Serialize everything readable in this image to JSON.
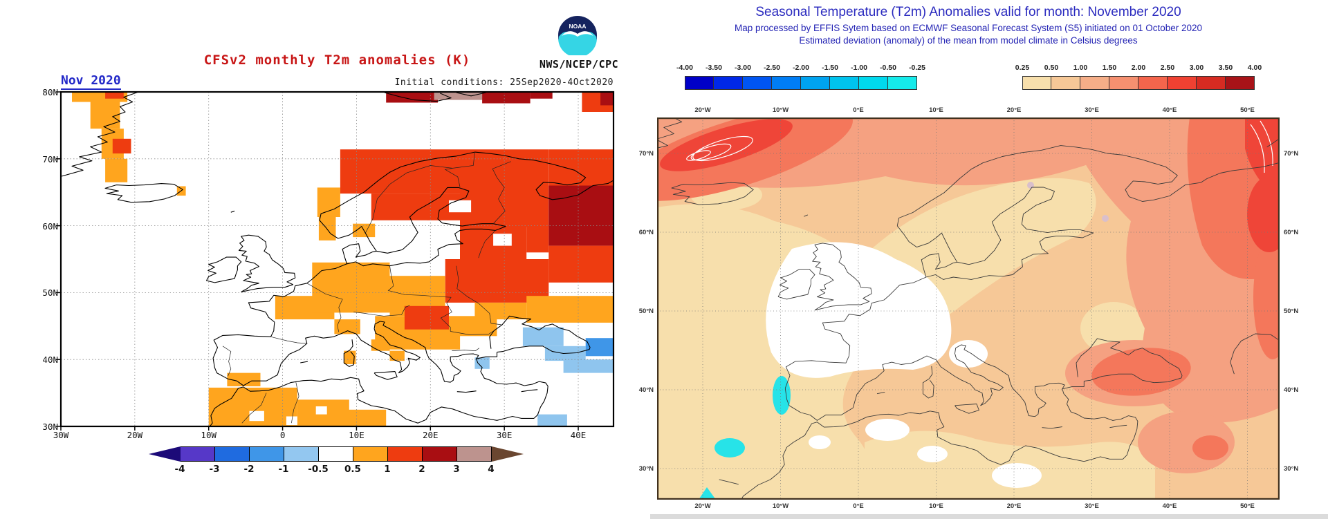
{
  "left_panel": {
    "title": "CFSv2 monthly T2m anomalies (K)",
    "date_label": "Nov 2020",
    "init_conditions": "Initial conditions: 25Sep2020-4Oct2020",
    "agency": "NWS/NCEP/CPC",
    "noaa_logo_text": "NOAA",
    "x_labels": [
      "30W",
      "20W",
      "10W",
      "0",
      "10E",
      "20E",
      "30E",
      "40E"
    ],
    "y_labels": [
      "80N",
      "70N",
      "60N",
      "50N",
      "40N",
      "30N"
    ],
    "colorbar": {
      "tick_labels": [
        "-4",
        "-3",
        "-2",
        "-1",
        "-0.5",
        "0.5",
        "1",
        "2",
        "3",
        "4"
      ],
      "segment_colors": [
        "#5638C8",
        "#1F6BE0",
        "#3F96E8",
        "#93C7F0",
        "#FFFFFF",
        "#FFA51E",
        "#EE3C10",
        "#A90E12",
        "#BD938E"
      ],
      "arrow_left_color": "#1C0A78",
      "arrow_right_color": "#6A4630"
    },
    "anomaly_colors": {
      "o": "#FFA51E",
      "r": "#EE3C10",
      "d": "#A90E12",
      "br": "#BD938E",
      "lb": "#8FC5EE",
      "mb": "#3F96E8",
      "w": "#FFFFFF"
    },
    "patches": [
      [
        -28.5,
        80,
        -21,
        78.5,
        "o"
      ],
      [
        -24,
        80,
        -21.5,
        79,
        "r"
      ],
      [
        -26,
        78.5,
        -22,
        74.5,
        "o"
      ],
      [
        -24.5,
        74.5,
        -21.5,
        70,
        "o"
      ],
      [
        -23,
        73,
        -20.5,
        70.8,
        "r"
      ],
      [
        -24,
        70,
        -21,
        66.5,
        "o"
      ],
      [
        14,
        80,
        21,
        78.4,
        "d"
      ],
      [
        20.5,
        80,
        27,
        78.8,
        "br"
      ],
      [
        27,
        80,
        33.5,
        78.3,
        "d"
      ],
      [
        33.5,
        80,
        36.5,
        79,
        "d"
      ],
      [
        40.5,
        80,
        44.8,
        77,
        "r"
      ],
      [
        43,
        80,
        44.8,
        78,
        "d"
      ],
      [
        -14.3,
        65.9,
        -13.1,
        64.5,
        "o"
      ],
      [
        4.7,
        65.7,
        7.8,
        61.3,
        "o"
      ],
      [
        4.9,
        61.3,
        7.2,
        57.8,
        "o"
      ],
      [
        9.5,
        60.3,
        13,
        58.3,
        "o"
      ],
      [
        7.8,
        71.4,
        24,
        64.8,
        "r"
      ],
      [
        12,
        64.8,
        24,
        60.8,
        "r"
      ],
      [
        24,
        71.4,
        36,
        59.8,
        "r"
      ],
      [
        36,
        71.4,
        44.8,
        66,
        "r"
      ],
      [
        36,
        66,
        44.8,
        57,
        "d"
      ],
      [
        33,
        60,
        36,
        56,
        "r"
      ],
      [
        24,
        59.8,
        33,
        55,
        "r"
      ],
      [
        22,
        55,
        36,
        48.5,
        "r"
      ],
      [
        36,
        57,
        44.8,
        51.5,
        "r"
      ],
      [
        26,
        48.5,
        33,
        46,
        "o"
      ],
      [
        33,
        49.5,
        44.8,
        45.5,
        "o"
      ],
      [
        -1,
        49.5,
        7,
        46,
        "o"
      ],
      [
        4,
        54.5,
        14.5,
        47,
        "o"
      ],
      [
        14.5,
        52.5,
        22,
        46.5,
        "o"
      ],
      [
        7,
        46,
        10.5,
        43.8,
        "o"
      ],
      [
        12.5,
        46.5,
        24,
        41.5,
        "o"
      ],
      [
        24,
        46.5,
        29,
        43.5,
        "o"
      ],
      [
        16.5,
        48,
        22.5,
        44.5,
        "r"
      ],
      [
        12,
        43,
        14.5,
        41.3,
        "o"
      ],
      [
        14.5,
        41.3,
        16.5,
        39.8,
        "o"
      ],
      [
        8.3,
        41.3,
        9.9,
        39.3,
        "o"
      ],
      [
        -7.5,
        38,
        -3,
        36,
        "o"
      ],
      [
        -10,
        35.8,
        2,
        29.8,
        "o"
      ],
      [
        2,
        34,
        9,
        29.8,
        "o"
      ],
      [
        8,
        32.5,
        14,
        29.8,
        "o"
      ],
      [
        12.5,
        60.8,
        19.5,
        56.2,
        "w"
      ],
      [
        19.5,
        59.8,
        23,
        57.8,
        "w"
      ],
      [
        28.5,
        58.8,
        31,
        57,
        "w"
      ],
      [
        22.5,
        63.8,
        25.5,
        62,
        "w"
      ],
      [
        -4.5,
        32.3,
        -2.5,
        30.8,
        "w"
      ],
      [
        0.5,
        31.5,
        2,
        30.2,
        "w"
      ],
      [
        4.5,
        33,
        6,
        31.8,
        "w"
      ],
      [
        32.5,
        44.8,
        38,
        42,
        "lb"
      ],
      [
        35.5,
        42,
        41,
        39.8,
        "lb"
      ],
      [
        38,
        40,
        44.8,
        38,
        "lb"
      ],
      [
        41,
        43.2,
        44.8,
        40.5,
        "mb"
      ],
      [
        34.5,
        31.8,
        38.5,
        29.8,
        "lb"
      ],
      [
        26,
        40.3,
        28,
        38.6,
        "lb"
      ]
    ]
  },
  "right_panel": {
    "title": "Seasonal Temperature (T2m) Anomalies valid for month: November 2020",
    "subtitle1": "Map processed by EFFIS Sytem based on ECMWF Seasonal Forecast System (S5) initiated on 01 October 2020",
    "subtitle2": "Estimated deviation (anomaly) of the mean from model climate in Celsius degrees",
    "neg_colorbar": {
      "tick_labels": [
        "-4.00",
        "-3.50",
        "-3.00",
        "-2.50",
        "-2.00",
        "-1.50",
        "-1.00",
        "-0.50",
        "-0.25"
      ],
      "segment_colors": [
        "#0000C8",
        "#0028E8",
        "#0055F2",
        "#007DF5",
        "#00A3F0",
        "#00C3EE",
        "#00D9EE",
        "#15EBEB"
      ]
    },
    "pos_colorbar": {
      "tick_labels": [
        "0.25",
        "0.50",
        "1.00",
        "1.50",
        "2.00",
        "2.50",
        "3.00",
        "3.50",
        "4.00"
      ],
      "segment_colors": [
        "#F7DFAC",
        "#F6C897",
        "#F5AE88",
        "#F59070",
        "#F4654C",
        "#EF4132",
        "#D62B22",
        "#A81318"
      ]
    },
    "x_labels": [
      "20°W",
      "10°W",
      "0°E",
      "10°E",
      "20°E",
      "30°E",
      "40°E",
      "50°E"
    ],
    "y_labels": [
      "70°N",
      "60°N",
      "50°N",
      "40°N",
      "30°N"
    ],
    "region_colors": {
      "base": "#F6C897",
      "tan": "#F7DFAC",
      "salmon": "#F5A181",
      "salmonred": "#F4775B",
      "red": "#EF4538",
      "cyan": "#27E3E8",
      "white": "#FFFFFF",
      "pink": "#D9BFCC"
    }
  },
  "chart_data": [
    {
      "type": "heatmap",
      "title": "CFSv2 monthly T2m anomalies (K)",
      "period": "Nov 2020",
      "region": "Europe 30W-45E, 30N-80N",
      "scale_ticks": [
        -4,
        -3,
        -2,
        -1,
        -0.5,
        0.5,
        1,
        2,
        3,
        4
      ],
      "units": "K",
      "summary": "Warm anomalies (0.5-3K) over Scandinavia, eastern Europe and NW Russia; 2-3K NE Russia; slight cool anomalies (-1 to -0.5) over eastern Turkey/Caucasus"
    },
    {
      "type": "heatmap",
      "title": "Seasonal Temperature (T2m) Anomalies valid for month: November 2020",
      "region": "Europe/N Africa ~26W-54E, ~25N-75N",
      "scale_ticks": [
        -4,
        -3.5,
        -3,
        -2.5,
        -2,
        -1.5,
        -1,
        -0.5,
        -0.25,
        0.25,
        0.5,
        1,
        1.5,
        2,
        2.5,
        3,
        3.5,
        4
      ],
      "units": "°C",
      "summary": "Widespread 0.5-2.5°C warm anomaly; 2.5-3°C NW of Iceland and far NE; near zero over UK/France; small -0.5°C spots off Portugal and Madeira"
    }
  ]
}
